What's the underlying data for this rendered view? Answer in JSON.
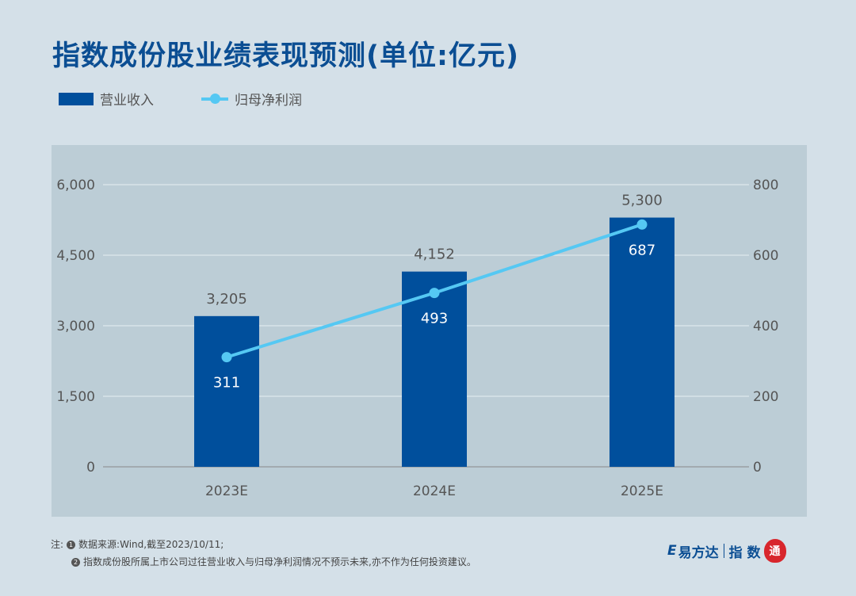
{
  "title": "指数成份股业绩表现预测(单位:亿元)",
  "legend": {
    "bar": "营业收入",
    "line": "归母净利润"
  },
  "colors": {
    "bar": "#004f9c",
    "line": "#55c8f3",
    "plot_bg": "#bccdd6"
  },
  "chart_data": {
    "type": "bar+line",
    "categories": [
      "2023E",
      "2024E",
      "2025E"
    ],
    "series": [
      {
        "name": "营业收入",
        "axis": "left",
        "type": "bar",
        "values": [
          3205,
          4152,
          5300
        ],
        "labels": [
          "3,205",
          "4,152",
          "5,300"
        ]
      },
      {
        "name": "归母净利润",
        "axis": "right",
        "type": "line",
        "values": [
          311,
          493,
          687
        ],
        "labels": [
          "311",
          "493",
          "687"
        ]
      }
    ],
    "left_axis": {
      "range": [
        0,
        6000
      ],
      "ticks": [
        0,
        1500,
        3000,
        4500,
        6000
      ],
      "tick_labels": [
        "0",
        "1,500",
        "3,000",
        "4,500",
        "6,000"
      ]
    },
    "right_axis": {
      "range": [
        0,
        800
      ],
      "ticks": [
        0,
        200,
        400,
        600,
        800
      ],
      "tick_labels": [
        "0",
        "200",
        "400",
        "600",
        "800"
      ]
    },
    "grid": true
  },
  "notes": {
    "prefix": "注:",
    "n1": "1",
    "n2": "2",
    "line1": "数据来源:Wind,截至2023/10/11;",
    "line2": "指数成份股所属上市公司过往营业收入与归母净利润情况不预示未来,亦不作为任何投资建议。"
  },
  "logo": {
    "brand": "易方达",
    "product": "指 数",
    "seal": "通",
    "mark": "E"
  }
}
